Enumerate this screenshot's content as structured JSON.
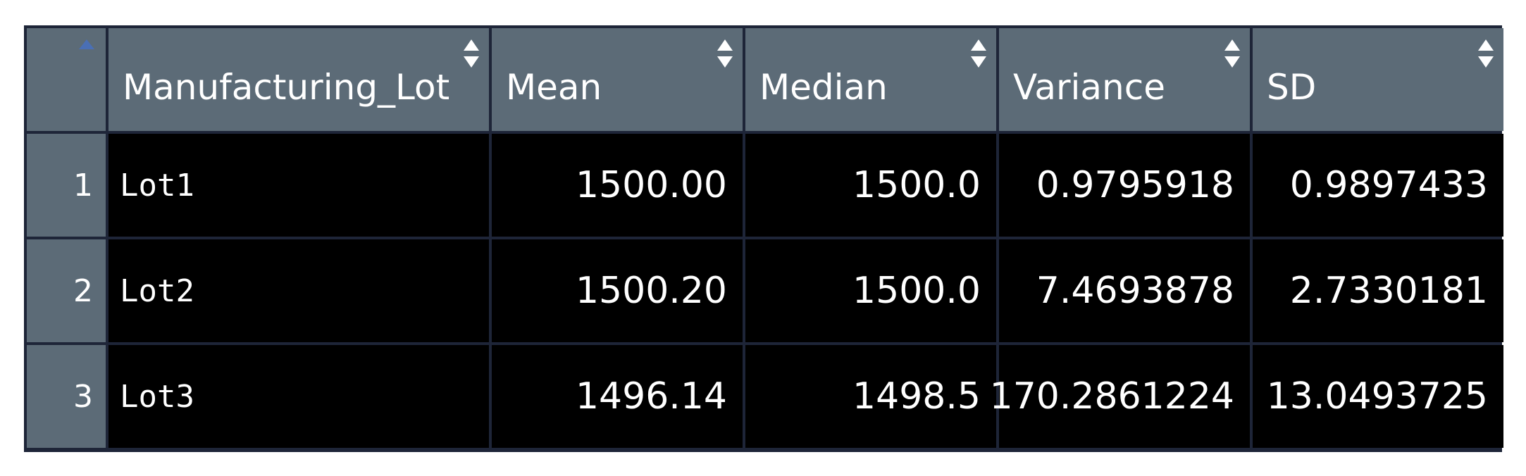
{
  "table": {
    "columns": [
      {
        "label": "Manufacturing_Lot",
        "align": "left"
      },
      {
        "label": "Mean",
        "align": "right"
      },
      {
        "label": "Median",
        "align": "right"
      },
      {
        "label": "Variance",
        "align": "right"
      },
      {
        "label": "SD",
        "align": "right"
      }
    ],
    "rows": [
      {
        "index": "1",
        "cells": [
          "Lot1",
          "1500.00",
          "1500.0",
          "0.9795918",
          "0.9897433"
        ]
      },
      {
        "index": "2",
        "cells": [
          "Lot2",
          "1500.20",
          "1500.0",
          "7.4693878",
          "2.7330181"
        ]
      },
      {
        "index": "3",
        "cells": [
          "Lot3",
          "1496.14",
          "1498.5",
          "170.2861224",
          "13.0493725"
        ]
      }
    ],
    "sorted_by": "row-index",
    "sort_direction": "ascending"
  },
  "colors": {
    "header_bg": "#5c6b77",
    "cell_bg": "#000000",
    "border": "#1e2538",
    "text": "#ffffff",
    "sort_active": "#4a6fb5",
    "sort_inactive": "#ffffff"
  }
}
